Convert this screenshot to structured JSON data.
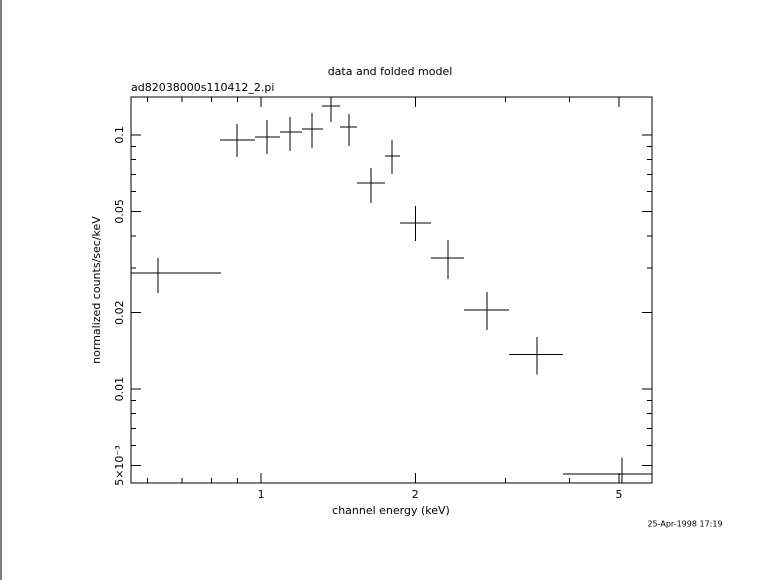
{
  "chart_data": {
    "type": "errorcross",
    "title": "data and folded model",
    "subtitle": "ad82038000s110412_2.pi",
    "x_label": "channel energy (keV)",
    "y_label": "normalized counts/sec/keV",
    "timestamp": "25-Apr-1998 17:19",
    "x_log": true,
    "y_log": true,
    "x": [
      0.629,
      0.898,
      1.027,
      1.139,
      1.258,
      1.37,
      1.486,
      1.64,
      1.802,
      2.0,
      2.319,
      2.764,
      3.46,
      5.07
    ],
    "x_low": [
      0.557,
      0.832,
      0.973,
      1.089,
      1.202,
      1.316,
      1.427,
      1.54,
      1.746,
      1.868,
      2.148,
      2.49,
      3.05,
      3.89
    ],
    "x_high": [
      0.835,
      0.973,
      1.089,
      1.202,
      1.322,
      1.427,
      1.54,
      1.746,
      1.868,
      2.148,
      2.49,
      3.05,
      3.89,
      5.8
    ],
    "values": [
      0.0286,
      0.0955,
      0.0982,
      0.1027,
      0.1056,
      0.13,
      0.1075,
      0.0647,
      0.0827,
      0.045,
      0.0328,
      0.0205,
      0.0137,
      0.00464
    ],
    "y_low": [
      0.0239,
      0.0819,
      0.0842,
      0.0865,
      0.0889,
      0.1125,
      0.0905,
      0.054,
      0.0702,
      0.0383,
      0.0271,
      0.0171,
      0.0114,
      0.00427
    ],
    "y_high": [
      0.0328,
      0.1105,
      0.1146,
      0.1178,
      0.122,
      0.141,
      0.121,
      0.0742,
      0.0956,
      0.0526,
      0.0386,
      0.0241,
      0.016,
      0.00537
    ],
    "color": "#000000",
    "xlim": [
      0.557,
      5.8
    ],
    "ylim": [
      0.00427,
      0.141
    ],
    "xticks": [
      1,
      2,
      5
    ],
    "xminorticks": [
      0.6,
      0.7,
      0.8,
      0.9,
      3,
      4
    ],
    "yticks": [
      {
        "value": 0.005,
        "label": "5×10⁻³"
      },
      0.01,
      0.02,
      0.05,
      0.1
    ],
    "yminorticks": [
      0.006,
      0.007,
      0.008,
      0.009,
      0.03,
      0.04,
      0.06,
      0.07,
      0.08,
      0.09
    ]
  }
}
